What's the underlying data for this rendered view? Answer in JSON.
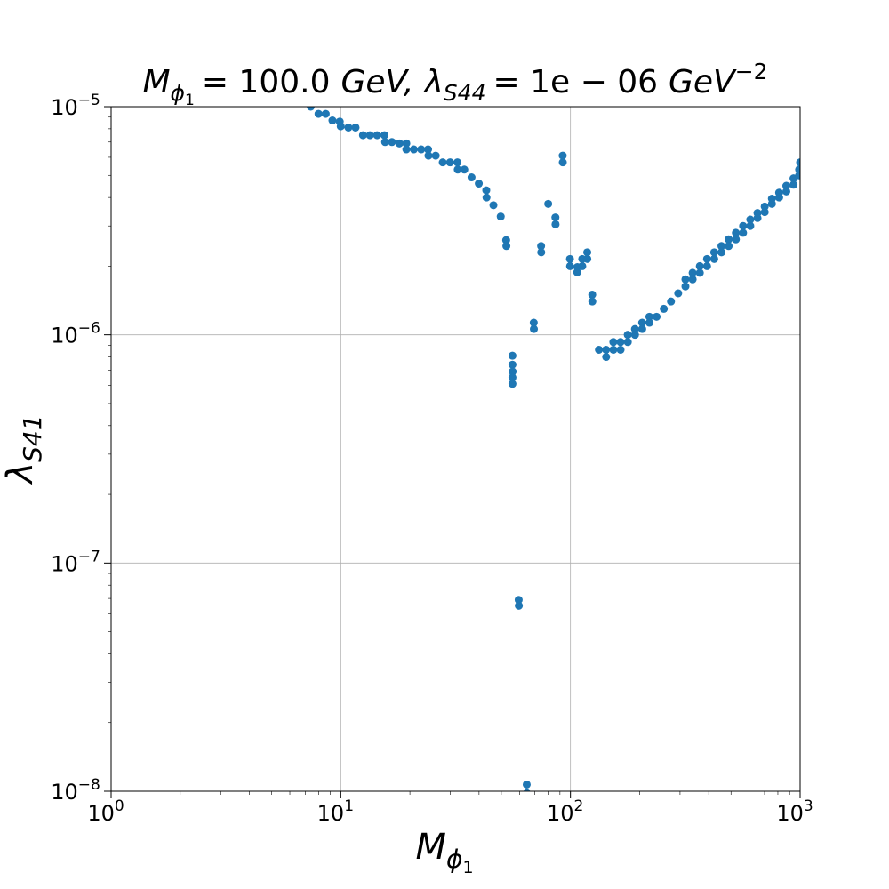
{
  "chart_data": {
    "type": "scatter",
    "title": {
      "mass_symbol": "M",
      "mass_subscript": "ϕ",
      "mass_sub_sub": "1",
      "mass_equals": "= 100.0",
      "mass_unit": "GeV,",
      "coupling_symbol": "λ",
      "coupling_subscript": "S44",
      "coupling_equals": "= 1e − 06",
      "coupling_unit": "GeV",
      "coupling_unit_exp": "−2"
    },
    "xlabel": {
      "symbol": "M",
      "subscript": "ϕ",
      "sub_sub": "1"
    },
    "ylabel": {
      "symbol": "λ",
      "subscript": "S41"
    },
    "xscale": "log",
    "yscale": "log",
    "xlim": [
      1,
      1000
    ],
    "ylim": [
      1e-08,
      1e-05
    ],
    "grid": true,
    "marker_color": "#1f77b4",
    "x_ticks": [
      {
        "value": 1,
        "base": "10",
        "exp": "0"
      },
      {
        "value": 10,
        "base": "10",
        "exp": "1"
      },
      {
        "value": 100,
        "base": "10",
        "exp": "2"
      },
      {
        "value": 1000,
        "base": "10",
        "exp": "3"
      }
    ],
    "y_ticks": [
      {
        "value": 1e-08,
        "base": "10",
        "exp": "−8"
      },
      {
        "value": 1e-07,
        "base": "10",
        "exp": "−7"
      },
      {
        "value": 1e-06,
        "base": "10",
        "exp": "−6"
      },
      {
        "value": 1e-05,
        "base": "10",
        "exp": "−5"
      }
    ],
    "series": [
      {
        "points": [
          [
            7.4,
            1e-05
          ],
          [
            8.0,
            9.3e-06
          ],
          [
            8.6,
            9.3e-06
          ],
          [
            9.2,
            8.7e-06
          ],
          [
            9.9,
            8.6e-06
          ],
          [
            10.0,
            8.2e-06
          ],
          [
            10.8,
            8.1e-06
          ],
          [
            11.6,
            8.1e-06
          ],
          [
            12.5,
            7.5e-06
          ],
          [
            13.4,
            7.5e-06
          ],
          [
            14.4,
            7.5e-06
          ],
          [
            15.5,
            7.5e-06
          ],
          [
            15.6,
            7e-06
          ],
          [
            16.7,
            7e-06
          ],
          [
            18.0,
            6.9e-06
          ],
          [
            19.3,
            6.9e-06
          ],
          [
            19.3,
            6.5e-06
          ],
          [
            20.8,
            6.5e-06
          ],
          [
            22.4,
            6.5e-06
          ],
          [
            24.0,
            6.5e-06
          ],
          [
            24.1,
            6.1e-06
          ],
          [
            25.9,
            6.1e-06
          ],
          [
            27.8,
            5.7e-06
          ],
          [
            29.9,
            5.7e-06
          ],
          [
            32.2,
            5.7e-06
          ],
          [
            32.3,
            5.3e-06
          ],
          [
            34.5,
            5.3e-06
          ],
          [
            37.1,
            4.9e-06
          ],
          [
            39.9,
            4.6e-06
          ],
          [
            43.0,
            4.3e-06
          ],
          [
            43.1,
            4e-06
          ],
          [
            46.2,
            3.7e-06
          ],
          [
            49.7,
            3.3e-06
          ],
          [
            52.5,
            2.6e-06
          ],
          [
            52.6,
            2.45e-06
          ],
          [
            55.9,
            8.1e-07
          ],
          [
            55.9,
            7.4e-07
          ],
          [
            56.0,
            6.9e-07
          ],
          [
            55.9,
            6.5e-07
          ],
          [
            55.9,
            6.1e-07
          ],
          [
            59.5,
            6.9e-08
          ],
          [
            59.6,
            6.5e-08
          ],
          [
            64.5,
            1.07e-08
          ],
          [
            64.6,
            9.8e-09
          ],
          [
            69.2,
            1.13e-06
          ],
          [
            69.3,
            1.06e-06
          ],
          [
            74.5,
            2.45e-06
          ],
          [
            74.6,
            2.3e-06
          ],
          [
            80.0,
            3.75e-06
          ],
          [
            86.0,
            3.27e-06
          ],
          [
            86.1,
            3.05e-06
          ],
          [
            92.5,
            6.1e-06
          ],
          [
            92.6,
            5.7e-06
          ],
          [
            99.5,
            2.15e-06
          ],
          [
            99.6,
            2e-06
          ],
          [
            107.0,
            1.88e-06
          ],
          [
            107.1,
            1.98e-06
          ],
          [
            112.5,
            2.15e-06
          ],
          [
            112.6,
            2e-06
          ],
          [
            118.3,
            2.3e-06
          ],
          [
            118.4,
            2.15e-06
          ],
          [
            124.4,
            1.5e-06
          ],
          [
            124.5,
            1.4e-06
          ],
          [
            133.0,
            8.6e-07
          ],
          [
            142.9,
            8.6e-07
          ],
          [
            143.0,
            8e-07
          ],
          [
            153.7,
            9.3e-07
          ],
          [
            153.8,
            8.6e-07
          ],
          [
            165.2,
            9.3e-07
          ],
          [
            165.3,
            8.6e-07
          ],
          [
            177.6,
            1e-06
          ],
          [
            177.7,
            9.3e-07
          ],
          [
            190.9,
            1.06e-06
          ],
          [
            191.0,
            1e-06
          ],
          [
            205.2,
            1.13e-06
          ],
          [
            205.3,
            1.06e-06
          ],
          [
            220.6,
            1.2e-06
          ],
          [
            220.7,
            1.13e-06
          ],
          [
            237.1,
            1.2e-06
          ],
          [
            254.9,
            1.3e-06
          ],
          [
            274.0,
            1.4e-06
          ],
          [
            294.5,
            1.52e-06
          ],
          [
            316.6,
            1.75e-06
          ],
          [
            316.7,
            1.63e-06
          ],
          [
            340.3,
            1.87e-06
          ],
          [
            340.4,
            1.75e-06
          ],
          [
            365.8,
            2e-06
          ],
          [
            365.9,
            1.87e-06
          ],
          [
            393.2,
            2.15e-06
          ],
          [
            393.3,
            2e-06
          ],
          [
            422.7,
            2.3e-06
          ],
          [
            422.8,
            2.15e-06
          ],
          [
            454.4,
            2.45e-06
          ],
          [
            454.5,
            2.3e-06
          ],
          [
            488.4,
            2.62e-06
          ],
          [
            488.5,
            2.45e-06
          ],
          [
            525.0,
            2.8e-06
          ],
          [
            525.1,
            2.62e-06
          ],
          [
            564.4,
            3e-06
          ],
          [
            564.5,
            2.8e-06
          ],
          [
            606.7,
            3.2e-06
          ],
          [
            606.8,
            3e-06
          ],
          [
            652.2,
            3.42e-06
          ],
          [
            652.3,
            3.25e-06
          ],
          [
            701.1,
            3.65e-06
          ],
          [
            701.2,
            3.45e-06
          ],
          [
            753.6,
            3.95e-06
          ],
          [
            753.7,
            3.75e-06
          ],
          [
            810.1,
            4.2e-06
          ],
          [
            810.2,
            4e-06
          ],
          [
            870.8,
            4.5e-06
          ],
          [
            870.9,
            4.25e-06
          ],
          [
            936.1,
            4.85e-06
          ],
          [
            936.2,
            4.55e-06
          ],
          [
            990.0,
            5.3e-06
          ],
          [
            990.1,
            5e-06
          ],
          [
            1000,
            5.7e-06
          ],
          [
            1000,
            5.3e-06
          ]
        ]
      }
    ]
  }
}
